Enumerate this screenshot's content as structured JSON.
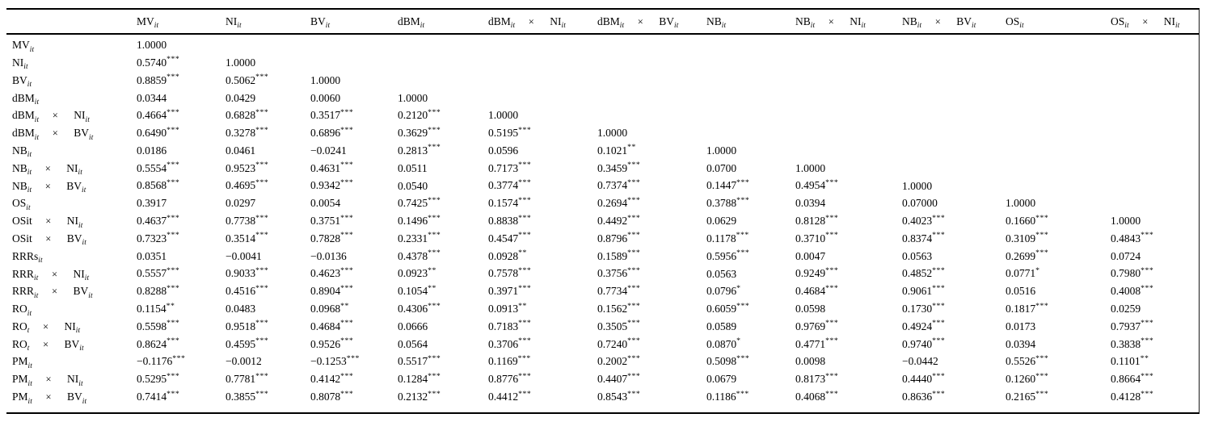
{
  "table": {
    "title": "correlation-matrix",
    "corner_label": "",
    "columns": [
      "MV_{it}",
      "NI_{it}",
      "BV_{it}",
      "dBM_{it}",
      "dBM_{it} × NI_{it}",
      "dBM_{it} × BV_{it}",
      "NB_{it}",
      "NB_{it} × NI_{it}",
      "NB_{it} × BV_{it}",
      "OS_{it}",
      "OS_{it} × NI_{it}"
    ],
    "rows": [
      {
        "label": "MV_{it}",
        "cells": [
          "1.0000"
        ]
      },
      {
        "label": "NI_{it}",
        "cells": [
          "0.5740***",
          "1.0000"
        ]
      },
      {
        "label": "BV_{it}",
        "cells": [
          "0.8859***",
          "0.5062***",
          "1.0000"
        ]
      },
      {
        "label": "dBM_{it}",
        "cells": [
          "0.0344",
          "0.0429",
          "0.0060",
          "1.0000"
        ]
      },
      {
        "label": "dBM_{it} × NI_{it}",
        "cells": [
          "0.4664***",
          "0.6828***",
          "0.3517***",
          "0.2120***",
          "1.0000"
        ]
      },
      {
        "label": "dBM_{it} × BV_{it}",
        "cells": [
          "0.6490***",
          "0.3278***",
          "0.6896***",
          "0.3629***",
          "0.5195***",
          "1.0000"
        ]
      },
      {
        "label": "NB_{it}",
        "cells": [
          "0.0186",
          "0.0461",
          "−0.0241",
          "0.2813***",
          "0.0596",
          "0.1021**",
          "1.0000"
        ]
      },
      {
        "label": "NB_{it} × NI_{it}",
        "cells": [
          "0.5554***",
          "0.9523***",
          "0.4631***",
          "0.0511",
          "0.7173***",
          "0.3459***",
          "0.0700",
          "1.0000"
        ]
      },
      {
        "label": "NB_{it} × BV_{it}",
        "cells": [
          "0.8568***",
          "0.4695***",
          "0.9342***",
          "0.0540",
          "0.3774***",
          "0.7374***",
          "0.1447***",
          "0.4954***",
          "1.0000"
        ]
      },
      {
        "label": "OS_{it}",
        "cells": [
          "0.3917",
          "0.0297",
          "0.0054",
          "0.7425***",
          "0.1574***",
          "0.2694***",
          "0.3788***",
          "0.0394",
          "0.07000",
          "1.0000"
        ]
      },
      {
        "label": "OSit × NI_{it}",
        "cells": [
          "0.4637***",
          "0.7738***",
          "0.3751***",
          "0.1496***",
          "0.8838***",
          "0.4492***",
          "0.0629",
          "0.8128***",
          "0.4023***",
          "0.1660***",
          "1.0000"
        ]
      },
      {
        "label": "OSit × BV_{it}",
        "cells": [
          "0.7323***",
          "0.3514***",
          "0.7828***",
          "0.2331***",
          "0.4547***",
          "0.8796***",
          "0.1178***",
          "0.3710***",
          "0.8374***",
          "0.3109***",
          "0.4843***"
        ]
      },
      {
        "label": "RRRs_{it}",
        "cells": [
          "0.0351",
          "−0.0041",
          "−0.0136",
          "0.4378***",
          "0.0928**",
          "0.1589***",
          "0.5956***",
          "0.0047",
          "0.0563",
          "0.2699***",
          "0.0724"
        ]
      },
      {
        "label": "RRR_{it} × NI_{it}",
        "cells": [
          "0.5557***",
          "0.9033***",
          "0.4623***",
          "0.0923**",
          "0.7578***",
          "0.3756***",
          "0.0563",
          "0.9249***",
          "0.4852***",
          "0.0771*",
          "0.7980***"
        ]
      },
      {
        "label": "RRR_{it} × BV_{it}",
        "cells": [
          "0.8288***",
          "0.4516***",
          "0.8904***",
          "0.1054**",
          "0.3971***",
          "0.7734***",
          "0.0796*",
          "0.4684***",
          "0.9061***",
          "0.0516",
          "0.4008***"
        ]
      },
      {
        "label": "RO_{it}",
        "cells": [
          "0.1154**",
          "0.0483",
          "0.0968**",
          "0.4306***",
          "0.0913**",
          "0.1562***",
          "0.6059***",
          "0.0598",
          "0.1730***",
          "0.1817***",
          "0.0259"
        ]
      },
      {
        "label": "RO_{t} × NI_{it}",
        "cells": [
          "0.5598***",
          "0.9518***",
          "0.4684***",
          "0.0666",
          "0.7183***",
          "0.3505***",
          "0.0589",
          "0.9769***",
          "0.4924***",
          "0.0173",
          "0.7937***"
        ]
      },
      {
        "label": "RO_{t} × BV_{it}",
        "cells": [
          "0.8624***",
          "0.4595***",
          "0.9526***",
          "0.0564",
          "0.3706***",
          "0.7240***",
          "0.0870*",
          "0.4771***",
          "0.9740***",
          "0.0394",
          "0.3838***"
        ]
      },
      {
        "label": "PM_{it}",
        "cells": [
          "−0.1176***",
          "−0.0012",
          "−0.1253***",
          "0.5517***",
          "0.1169***",
          "0.2002***",
          "0.5098***",
          "0.0098",
          "−0.0442",
          "0.5526***",
          "0.1101**"
        ]
      },
      {
        "label": "PM_{it} × NI_{it}",
        "cells": [
          "0.5295***",
          "0.7781***",
          "0.4142***",
          "0.1284***",
          "0.8776***",
          "0.4407***",
          "0.0679",
          "0.8173***",
          "0.4440***",
          "0.1260***",
          "0.8664***"
        ]
      },
      {
        "label": "PM_{it} × BV_{it}",
        "cells": [
          "0.7414***",
          "0.3855***",
          "0.8078***",
          "0.2132***",
          "0.4412***",
          "0.8543***",
          "0.1186***",
          "0.4068***",
          "0.8636***",
          "0.2165***",
          "0.4128***"
        ]
      }
    ]
  }
}
